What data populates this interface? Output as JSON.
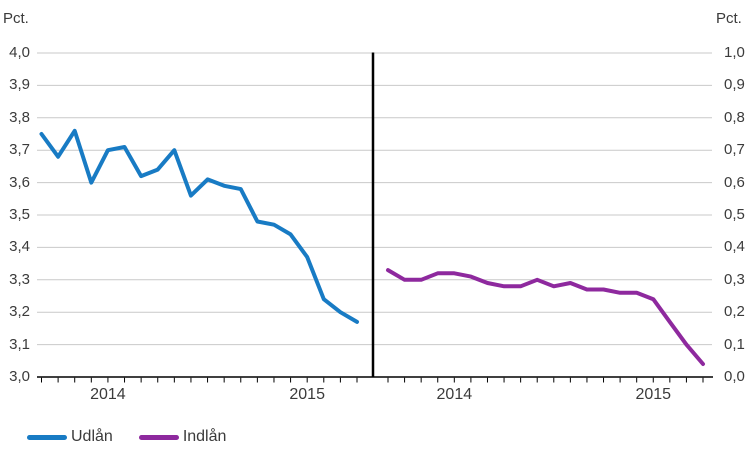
{
  "chart_data": {
    "type": "line",
    "title": "",
    "panels": [
      {
        "side": "left",
        "axis_unit_label": "Pct.",
        "y_axis": {
          "position": "left",
          "min": 3.0,
          "max": 4.0,
          "tick_step": 0.1,
          "tick_labels": [
            "4,0",
            "3,9",
            "3,8",
            "3,7",
            "3,6",
            "3,5",
            "3,4",
            "3,3",
            "3,2",
            "3,1",
            "3,0"
          ]
        },
        "x_axis": {
          "year_labels": [
            {
              "text": "2014",
              "point_index": 4
            },
            {
              "text": "2015",
              "point_index": 16
            }
          ]
        },
        "series": {
          "name": "Udlån",
          "color": "#187bc4",
          "values": [
            3.75,
            3.68,
            3.76,
            3.6,
            3.7,
            3.71,
            3.62,
            3.64,
            3.7,
            3.56,
            3.61,
            3.59,
            3.58,
            3.48,
            3.47,
            3.44,
            3.37,
            3.24,
            3.2,
            3.17
          ]
        }
      },
      {
        "side": "right",
        "axis_unit_label": "Pct.",
        "y_axis": {
          "position": "right",
          "min": 0.0,
          "max": 1.0,
          "tick_step": 0.1,
          "tick_labels": [
            "1,0",
            "0,9",
            "0,8",
            "0,7",
            "0,6",
            "0,5",
            "0,4",
            "0,3",
            "0,2",
            "0,1",
            "0,0"
          ]
        },
        "x_axis": {
          "year_labels": [
            {
              "text": "2014",
              "point_index": 4
            },
            {
              "text": "2015",
              "point_index": 16
            }
          ]
        },
        "series": {
          "name": "Indlån",
          "color": "#8e299e",
          "values": [
            0.33,
            0.3,
            0.3,
            0.32,
            0.32,
            0.31,
            0.29,
            0.28,
            0.28,
            0.3,
            0.28,
            0.29,
            0.27,
            0.27,
            0.26,
            0.26,
            0.24,
            0.17,
            0.1,
            0.04
          ]
        }
      }
    ],
    "legend": [
      {
        "label": "Udlån",
        "color": "#187bc4"
      },
      {
        "label": "Indlån",
        "color": "#8e299e"
      }
    ],
    "style": {
      "gridline_color": "#c9c9c9",
      "axis_color": "#000000",
      "divider_color": "#000000",
      "text_color": "#3b3b3b",
      "background": "#ffffff"
    },
    "layout_hints": {
      "grid": true,
      "points_per_series": 20,
      "divider_between_panels": true,
      "legend_position": "bottom-left"
    }
  }
}
